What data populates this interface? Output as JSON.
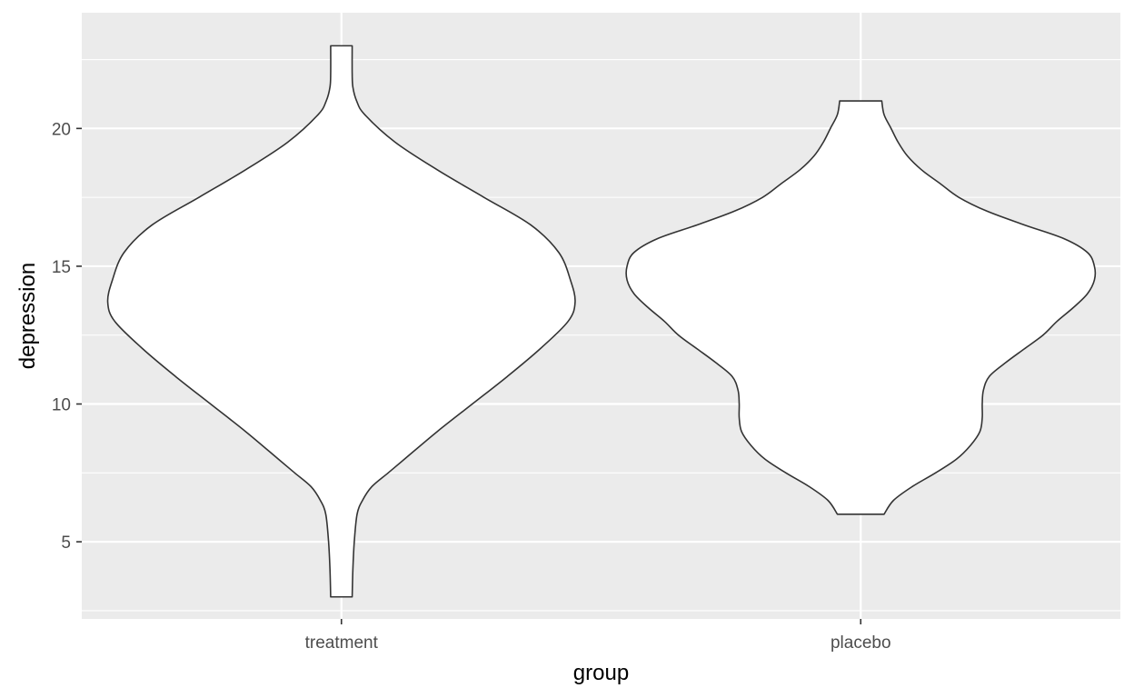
{
  "chart_data": {
    "type": "violin",
    "title": "",
    "xlabel": "group",
    "ylabel": "depression",
    "categories": [
      "treatment",
      "placebo"
    ],
    "ylim": [
      2.2,
      24.2
    ],
    "yticks": [
      5,
      10,
      15,
      20
    ],
    "grid": true,
    "legend": "none",
    "colors": {
      "panel_background": "#ebebeb",
      "grid": "#ffffff",
      "violin_fill": "#ffffff",
      "violin_outline": "#333333"
    },
    "series": [
      {
        "name": "treatment",
        "range": [
          3,
          23
        ],
        "density_profile": [
          {
            "y": 3.0,
            "w": 0.046
          },
          {
            "y": 4.0,
            "w": 0.049
          },
          {
            "y": 5.0,
            "w": 0.055
          },
          {
            "y": 6.0,
            "w": 0.067
          },
          {
            "y": 6.5,
            "w": 0.09
          },
          {
            "y": 7.0,
            "w": 0.13
          },
          {
            "y": 7.5,
            "w": 0.2
          },
          {
            "y": 8.0,
            "w": 0.27
          },
          {
            "y": 9.0,
            "w": 0.41
          },
          {
            "y": 10.0,
            "w": 0.56
          },
          {
            "y": 11.0,
            "w": 0.71
          },
          {
            "y": 12.0,
            "w": 0.85
          },
          {
            "y": 13.0,
            "w": 0.97
          },
          {
            "y": 13.7,
            "w": 1.0
          },
          {
            "y": 14.5,
            "w": 0.98
          },
          {
            "y": 15.5,
            "w": 0.93
          },
          {
            "y": 16.5,
            "w": 0.81
          },
          {
            "y": 17.5,
            "w": 0.61
          },
          {
            "y": 18.5,
            "w": 0.41
          },
          {
            "y": 19.5,
            "w": 0.23
          },
          {
            "y": 20.5,
            "w": 0.1
          },
          {
            "y": 21.0,
            "w": 0.065
          },
          {
            "y": 21.5,
            "w": 0.049
          },
          {
            "y": 22.0,
            "w": 0.046
          },
          {
            "y": 23.0,
            "w": 0.046
          }
        ]
      },
      {
        "name": "placebo",
        "range": [
          6,
          21
        ],
        "density_profile": [
          {
            "y": 6.0,
            "w": 0.1
          },
          {
            "y": 6.5,
            "w": 0.14
          },
          {
            "y": 7.0,
            "w": 0.22
          },
          {
            "y": 7.5,
            "w": 0.32
          },
          {
            "y": 8.0,
            "w": 0.41
          },
          {
            "y": 8.5,
            "w": 0.47
          },
          {
            "y": 9.0,
            "w": 0.51
          },
          {
            "y": 9.5,
            "w": 0.52
          },
          {
            "y": 10.0,
            "w": 0.52
          },
          {
            "y": 10.5,
            "w": 0.525
          },
          {
            "y": 11.0,
            "w": 0.55
          },
          {
            "y": 11.5,
            "w": 0.62
          },
          {
            "y": 12.0,
            "w": 0.7
          },
          {
            "y": 12.5,
            "w": 0.78
          },
          {
            "y": 13.0,
            "w": 0.84
          },
          {
            "y": 13.5,
            "w": 0.91
          },
          {
            "y": 14.0,
            "w": 0.97
          },
          {
            "y": 14.5,
            "w": 1.0
          },
          {
            "y": 15.0,
            "w": 1.0
          },
          {
            "y": 15.5,
            "w": 0.97
          },
          {
            "y": 16.0,
            "w": 0.87
          },
          {
            "y": 16.5,
            "w": 0.7
          },
          {
            "y": 17.0,
            "w": 0.54
          },
          {
            "y": 17.5,
            "w": 0.42
          },
          {
            "y": 18.0,
            "w": 0.34
          },
          {
            "y": 18.5,
            "w": 0.26
          },
          {
            "y": 19.0,
            "w": 0.2
          },
          {
            "y": 19.5,
            "w": 0.16
          },
          {
            "y": 20.0,
            "w": 0.13
          },
          {
            "y": 20.5,
            "w": 0.1
          },
          {
            "y": 21.0,
            "w": 0.09
          }
        ]
      }
    ]
  }
}
